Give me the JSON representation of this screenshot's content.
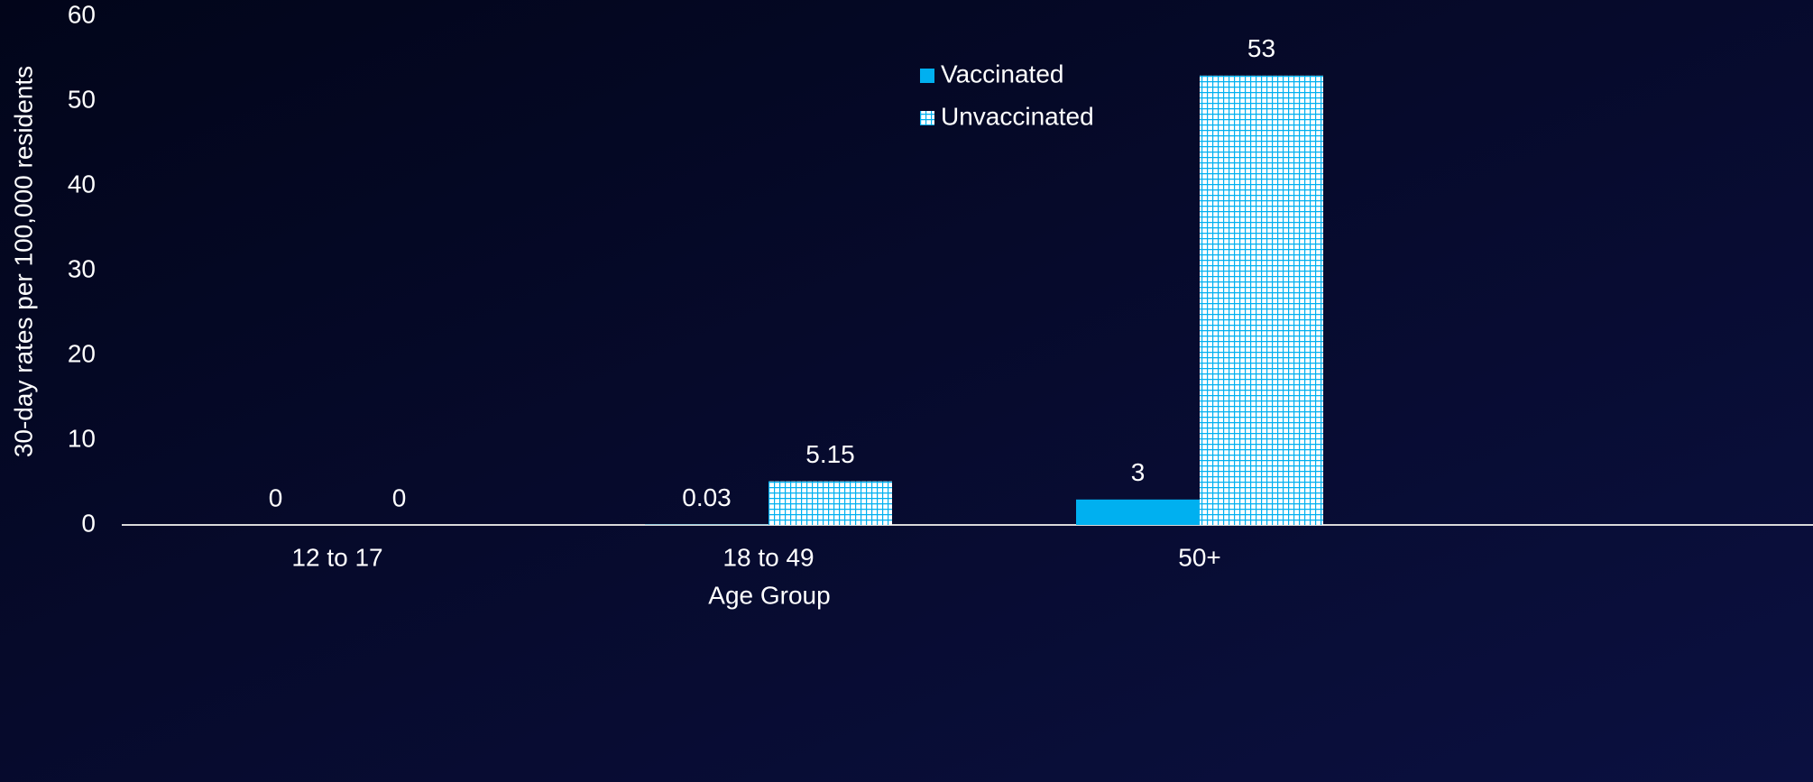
{
  "chart_data": {
    "type": "bar",
    "x_label": "Age Group",
    "y_label": "30-day rates per 100,000 residents",
    "categories": [
      "12 to 17",
      "18 to 49",
      "50+"
    ],
    "series": [
      {
        "name": "Vaccinated",
        "color": "#00b0f0",
        "values": [
          0,
          0.03,
          3
        ]
      },
      {
        "name": "Unvaccinated",
        "color": "#00b0f0",
        "pattern": "grid",
        "values": [
          0,
          5.15,
          53
        ]
      }
    ],
    "ylim": [
      0,
      60
    ],
    "yticks": [
      0,
      10,
      20,
      30,
      40,
      50,
      60
    ],
    "legend": "upper right"
  }
}
